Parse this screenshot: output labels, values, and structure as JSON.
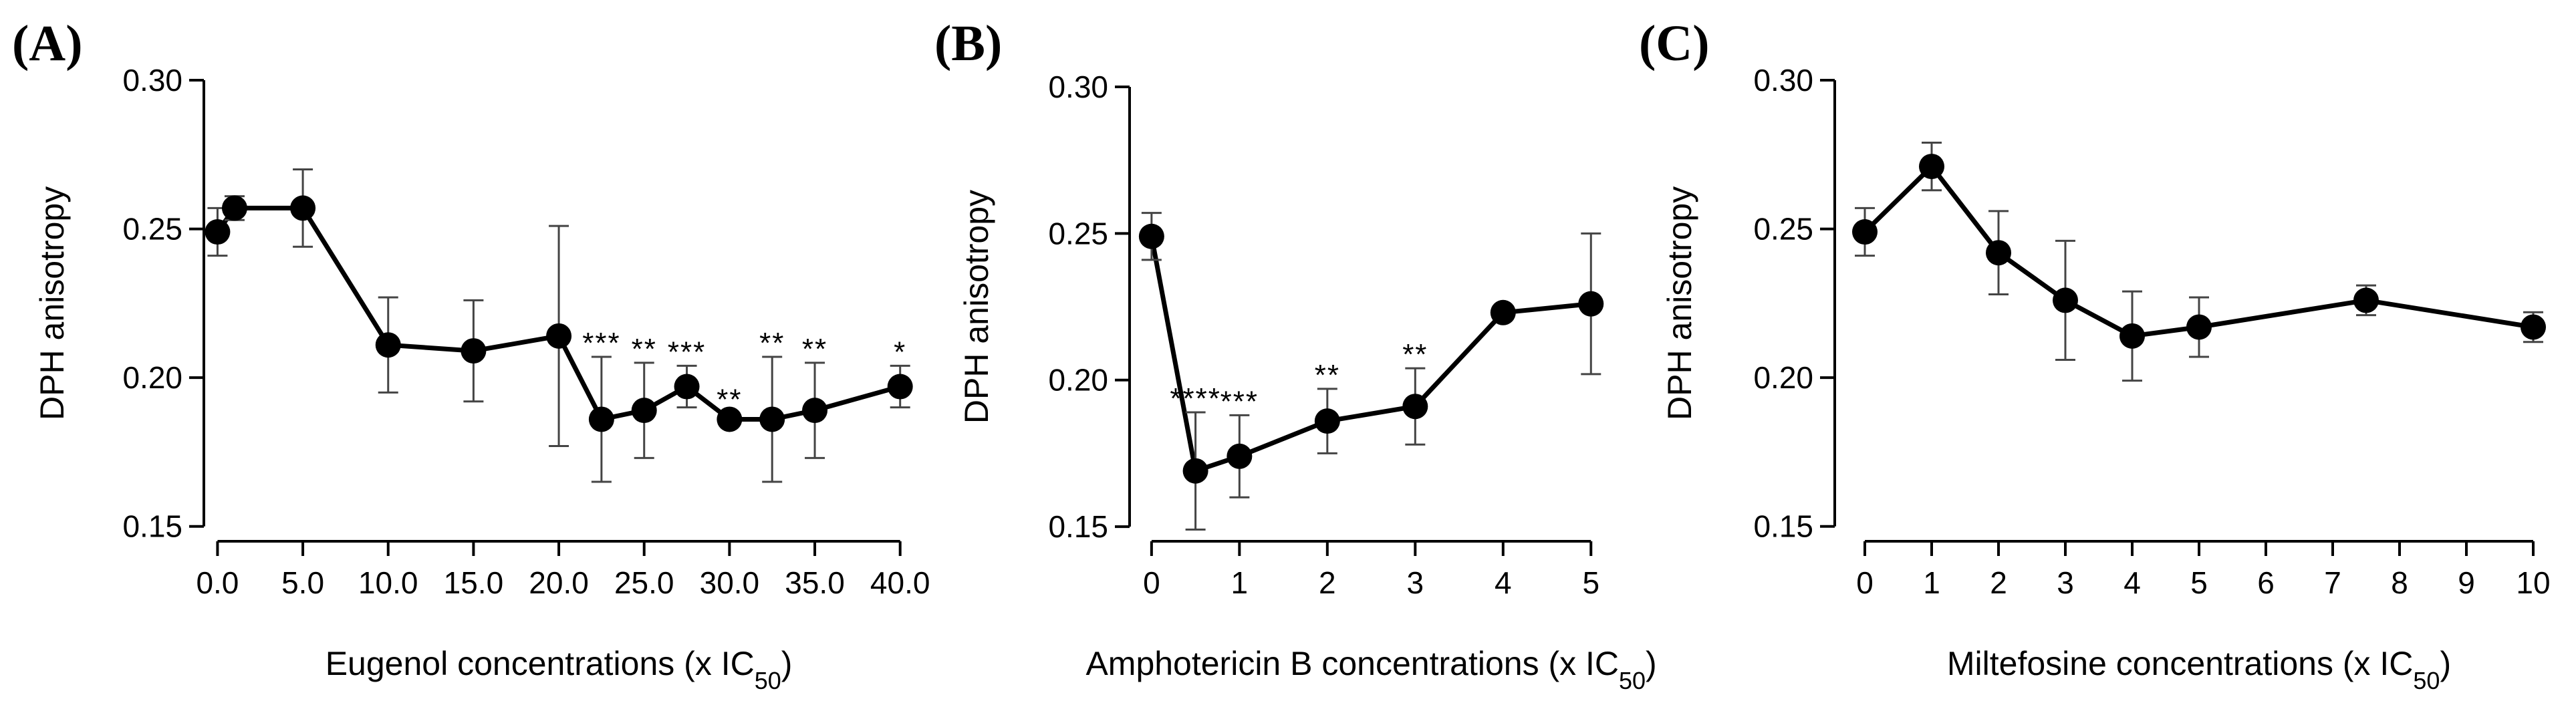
{
  "chart_data": [
    {
      "type": "line",
      "panel_label": "(A)",
      "xlabel": "Eugenol concentrations (x IC",
      "xlabel_sub": "50",
      "xlabel_end": ")",
      "ylabel": "DPH anisotropy",
      "xlim": [
        -0.8,
        41.5
      ],
      "ylim": [
        0.145,
        0.3
      ],
      "yticks": [
        0.15,
        0.2,
        0.25,
        0.3
      ],
      "ytick_labels": [
        "0.15",
        "0.20",
        "0.25",
        "0.30"
      ],
      "xticks": [
        0,
        5,
        10,
        15,
        20,
        25,
        30,
        35,
        40
      ],
      "xtick_labels": [
        "0.0",
        "5.0",
        "10.0",
        "15.0",
        "20.0",
        "25.0",
        "30.0",
        "35.0",
        "40.0"
      ],
      "grid": false,
      "points": [
        {
          "x": 0,
          "y": 0.249,
          "err": 0.008,
          "sig": ""
        },
        {
          "x": 1,
          "y": 0.257,
          "err": 0.004,
          "sig": ""
        },
        {
          "x": 5,
          "y": 0.257,
          "err": 0.013,
          "sig": ""
        },
        {
          "x": 10,
          "y": 0.211,
          "err": 0.016,
          "sig": ""
        },
        {
          "x": 15,
          "y": 0.209,
          "err": 0.017,
          "sig": ""
        },
        {
          "x": 20,
          "y": 0.214,
          "err": 0.037,
          "sig": ""
        },
        {
          "x": 22.5,
          "y": 0.186,
          "err": 0.021,
          "sig": "***"
        },
        {
          "x": 25,
          "y": 0.189,
          "err": 0.016,
          "sig": "**"
        },
        {
          "x": 27.5,
          "y": 0.197,
          "err": 0.007,
          "sig": "***"
        },
        {
          "x": 30,
          "y": 0.186,
          "err": 0.002,
          "sig": "**"
        },
        {
          "x": 32.5,
          "y": 0.186,
          "err": 0.021,
          "sig": "**"
        },
        {
          "x": 35,
          "y": 0.189,
          "err": 0.016,
          "sig": "**"
        },
        {
          "x": 40,
          "y": 0.197,
          "err": 0.007,
          "sig": "*"
        }
      ]
    },
    {
      "type": "line",
      "panel_label": "(B)",
      "xlabel": "Amphotericin B concentrations (x IC",
      "xlabel_sub": "50",
      "xlabel_end": ")",
      "ylabel": "DPH anisotropy",
      "xlim": [
        -0.25,
        5.15
      ],
      "ylim": [
        0.145,
        0.3
      ],
      "yticks": [
        0.15,
        0.2,
        0.25,
        0.3
      ],
      "ytick_labels": [
        "0.15",
        "0.20",
        "0.25",
        "0.30"
      ],
      "xticks": [
        0,
        1,
        2,
        3,
        4,
        5
      ],
      "xtick_labels": [
        "0",
        "1",
        "2",
        "3",
        "4",
        "5"
      ],
      "grid": false,
      "points": [
        {
          "x": 0,
          "y": 0.249,
          "err": 0.008,
          "sig": ""
        },
        {
          "x": 0.5,
          "y": 0.169,
          "err": 0.02,
          "sig": "****"
        },
        {
          "x": 1,
          "y": 0.174,
          "err": 0.014,
          "sig": "***"
        },
        {
          "x": 2,
          "y": 0.186,
          "err": 0.011,
          "sig": "**"
        },
        {
          "x": 3,
          "y": 0.191,
          "err": 0.013,
          "sig": "**"
        },
        {
          "x": 4,
          "y": 0.223,
          "err": 0.001,
          "sig": ""
        },
        {
          "x": 5,
          "y": 0.226,
          "err": 0.024,
          "sig": ""
        }
      ]
    },
    {
      "type": "line",
      "panel_label": "(C)",
      "xlabel": "Miltefosine concentrations (x IC",
      "xlabel_sub": "50",
      "xlabel_end": ")",
      "ylabel": "DPH anisotropy",
      "xlim": [
        -0.45,
        10.3
      ],
      "ylim": [
        0.145,
        0.3
      ],
      "yticks": [
        0.15,
        0.2,
        0.25,
        0.3
      ],
      "ytick_labels": [
        "0.15",
        "0.20",
        "0.25",
        "0.30"
      ],
      "xticks": [
        0,
        1,
        2,
        3,
        4,
        5,
        6,
        7,
        8,
        9,
        10
      ],
      "xtick_labels": [
        "0",
        "1",
        "2",
        "3",
        "4",
        "5",
        "6",
        "7",
        "8",
        "9",
        "10"
      ],
      "grid": false,
      "points": [
        {
          "x": 0,
          "y": 0.249,
          "err": 0.008,
          "sig": ""
        },
        {
          "x": 1,
          "y": 0.271,
          "err": 0.008,
          "sig": ""
        },
        {
          "x": 2,
          "y": 0.242,
          "err": 0.014,
          "sig": ""
        },
        {
          "x": 3,
          "y": 0.226,
          "err": 0.02,
          "sig": ""
        },
        {
          "x": 4,
          "y": 0.214,
          "err": 0.015,
          "sig": ""
        },
        {
          "x": 5,
          "y": 0.217,
          "err": 0.01,
          "sig": ""
        },
        {
          "x": 7.5,
          "y": 0.226,
          "err": 0.005,
          "sig": ""
        },
        {
          "x": 10,
          "y": 0.217,
          "err": 0.005,
          "sig": ""
        }
      ]
    }
  ]
}
